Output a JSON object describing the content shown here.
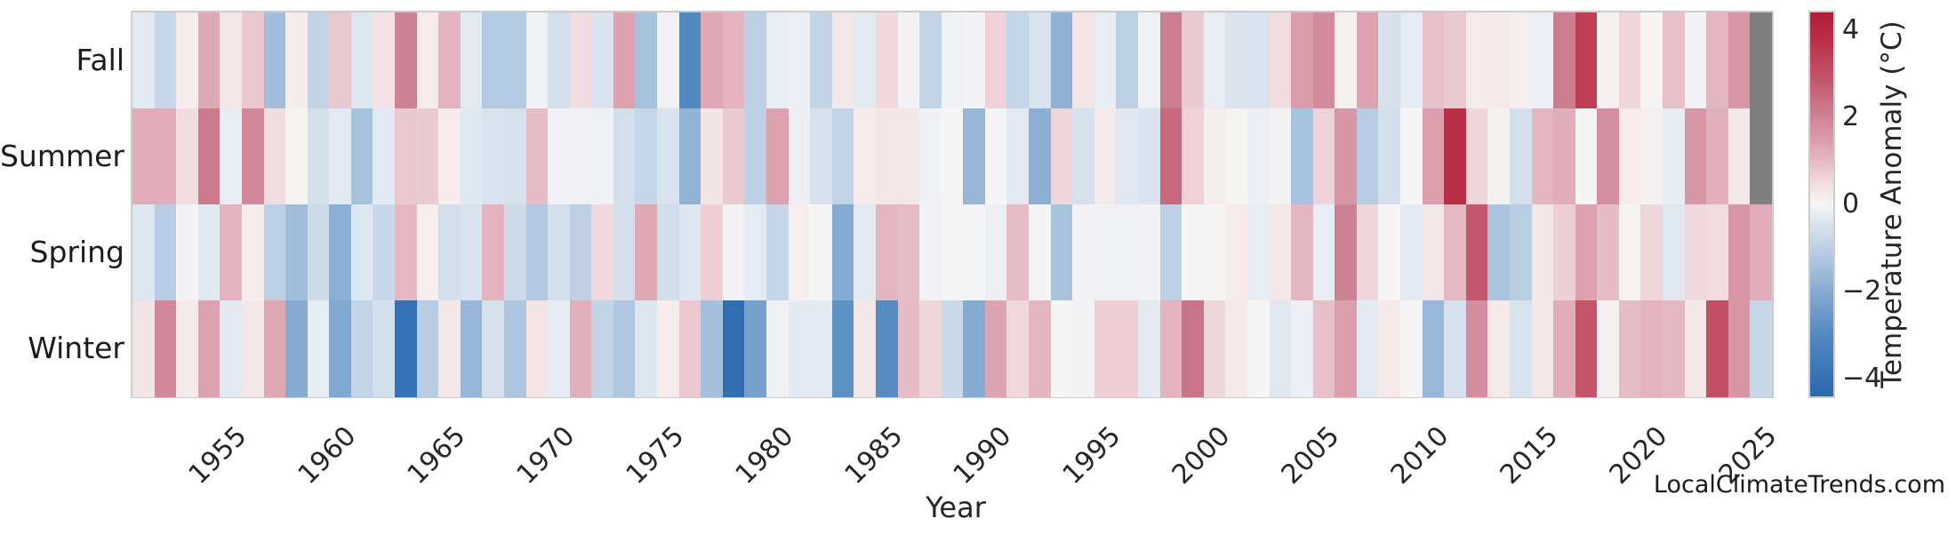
{
  "figure": {
    "xlabel": "Year",
    "watermark": "LocalClimateTrends.com"
  },
  "chart_data": {
    "type": "heatmap",
    "title": "",
    "xlabel": "Year",
    "ylabel": "",
    "rows": [
      "Fall",
      "Summer",
      "Spring",
      "Winter"
    ],
    "first_year": 1950,
    "last_year": 2024,
    "x_tick_labels": [
      "1955",
      "1960",
      "1965",
      "1970",
      "1975",
      "1980",
      "1985",
      "1990",
      "1995",
      "2000",
      "2005",
      "2010",
      "2015",
      "2020",
      "2025"
    ],
    "x_tick_years": [
      1955,
      1960,
      1965,
      1970,
      1975,
      1980,
      1985,
      1990,
      1995,
      2000,
      2005,
      2010,
      2015,
      2020,
      2025
    ],
    "missing_cells": [
      {
        "row": "Fall",
        "year": 2024
      },
      {
        "row": "Summer",
        "year": 2024
      }
    ],
    "missing_color": "#7f7f7f",
    "series": [
      {
        "name": "Fall",
        "values": [
          -0.3,
          -0.8,
          0.2,
          1.3,
          0.3,
          0.8,
          -1.5,
          0.2,
          -0.9,
          0.8,
          -0.4,
          0.4,
          2.0,
          0.2,
          1.1,
          -0.3,
          -1.15,
          -1.15,
          -0.1,
          -0.6,
          0.45,
          -0.5,
          1.4,
          -1.4,
          -0.1,
          -3.0,
          1.3,
          1.1,
          -1.0,
          -0.2,
          -0.15,
          -0.9,
          0.3,
          -0.3,
          0.55,
          -0.05,
          -0.9,
          -0.1,
          -0.05,
          0.65,
          -0.85,
          -0.5,
          -1.85,
          0.35,
          -0.2,
          -1.0,
          -0.1,
          2.1,
          0.75,
          -0.2,
          -0.45,
          -0.5,
          0.5,
          1.5,
          1.85,
          0.1,
          1.4,
          -0.55,
          -0.25,
          0.9,
          0.75,
          0.2,
          0.25,
          0.15,
          -0.15,
          2.1,
          3.4,
          0.1,
          0.6,
          0.05,
          0.9,
          -0.05,
          1.05,
          1.65,
          null
        ]
      },
      {
        "name": "Summer",
        "values": [
          1.2,
          1.2,
          0.5,
          2.2,
          -0.2,
          1.9,
          0.5,
          0.05,
          -0.6,
          -0.3,
          -1.4,
          -0.3,
          0.8,
          0.75,
          0.2,
          -0.35,
          -0.5,
          -0.55,
          0.95,
          -0.05,
          -0.1,
          -0.1,
          -0.6,
          -0.85,
          -0.5,
          -1.8,
          0.35,
          0.75,
          -1.0,
          1.4,
          -0.15,
          -0.55,
          -0.9,
          0.2,
          0.3,
          0.3,
          -0.1,
          0.0,
          -1.7,
          0.0,
          -0.3,
          -1.9,
          0.6,
          -0.55,
          0.25,
          -0.35,
          -0.45,
          2.5,
          0.65,
          0.15,
          0.05,
          -0.15,
          -0.05,
          -1.4,
          0.65,
          1.6,
          -1.1,
          -0.6,
          0.0,
          1.45,
          3.8,
          0.6,
          0.1,
          -0.6,
          1.05,
          1.2,
          0.0,
          1.75,
          0.2,
          0.1,
          -0.2,
          1.6,
          1.15,
          0.3,
          null
        ]
      },
      {
        "name": "Spring",
        "values": [
          -0.4,
          -1.1,
          -0.05,
          -0.35,
          1.1,
          0.2,
          -1.0,
          -1.5,
          -0.7,
          -1.9,
          -0.4,
          -0.8,
          1.0,
          0.15,
          -0.6,
          -0.5,
          1.1,
          -0.7,
          -1.2,
          -0.6,
          -1.0,
          0.55,
          -0.6,
          1.3,
          -0.65,
          -0.4,
          0.7,
          -0.05,
          -0.25,
          -0.85,
          0.15,
          0.0,
          -2.0,
          -0.3,
          1.05,
          0.95,
          -0.05,
          0.0,
          0.0,
          -0.15,
          0.95,
          0.0,
          -1.4,
          -0.05,
          -0.1,
          -0.1,
          -0.05,
          -1.0,
          0.0,
          0.05,
          0.2,
          -0.2,
          0.3,
          1.05,
          -0.2,
          2.0,
          0.6,
          0.0,
          -0.3,
          0.3,
          1.0,
          2.8,
          -1.35,
          -1.05,
          0.3,
          0.7,
          1.4,
          0.95,
          0.05,
          0.6,
          -0.35,
          0.55,
          0.5,
          1.65,
          1.2
        ]
      },
      {
        "name": "Winter",
        "values": [
          0.35,
          1.9,
          0.25,
          1.4,
          -0.3,
          0.3,
          1.3,
          -2.0,
          -0.2,
          -2.1,
          -0.9,
          -0.6,
          -4.0,
          -1.1,
          0.3,
          -1.7,
          -0.55,
          -1.3,
          0.35,
          -0.25,
          1.15,
          -0.9,
          -1.25,
          -0.4,
          0.2,
          0.8,
          -1.45,
          -4.2,
          -2.3,
          -0.1,
          -0.3,
          -0.3,
          -2.8,
          0.3,
          -2.9,
          0.95,
          0.6,
          -0.75,
          -2.0,
          1.35,
          0.55,
          1.05,
          0.0,
          -0.05,
          0.7,
          0.7,
          -0.3,
          1.1,
          2.3,
          0.6,
          0.25,
          0.0,
          -0.35,
          -0.15,
          0.9,
          1.45,
          -0.3,
          0.25,
          0.0,
          -1.65,
          -0.55,
          1.8,
          0.25,
          -0.5,
          0.3,
          1.2,
          2.9,
          0.1,
          0.95,
          1.1,
          1.0,
          0.3,
          3.0,
          1.65,
          -0.8
        ]
      }
    ],
    "colorbar": {
      "label": "Temperature Anomaly (°C)",
      "tick_labels": [
        "4",
        "2",
        "0",
        "−2",
        "−4"
      ],
      "tick_values": [
        4,
        2,
        0,
        -2,
        -4
      ],
      "vmin": -4.4,
      "vmax": 4.4,
      "colormap": "RdBu_r",
      "stops": [
        {
          "v": -4.4,
          "c": "#2a69af"
        },
        {
          "v": -3.0,
          "c": "#5389bf"
        },
        {
          "v": -2.0,
          "c": "#86abd2"
        },
        {
          "v": -1.2,
          "c": "#b2c9e1"
        },
        {
          "v": -0.6,
          "c": "#d3dfeb"
        },
        {
          "v": -0.2,
          "c": "#e8edf3"
        },
        {
          "v": 0.0,
          "c": "#f6f5f5"
        },
        {
          "v": 0.2,
          "c": "#f6ecec"
        },
        {
          "v": 0.6,
          "c": "#efd6db"
        },
        {
          "v": 1.0,
          "c": "#e5b9c4"
        },
        {
          "v": 1.5,
          "c": "#da9cab"
        },
        {
          "v": 2.1,
          "c": "#cc7e91"
        },
        {
          "v": 2.9,
          "c": "#c35469"
        },
        {
          "v": 3.8,
          "c": "#b92e47"
        },
        {
          "v": 4.4,
          "c": "#b01d37"
        }
      ]
    },
    "layout": {
      "grid": "off",
      "legend": "none",
      "x_ticks_rotation_deg": 45,
      "cell_gap": 0
    }
  }
}
